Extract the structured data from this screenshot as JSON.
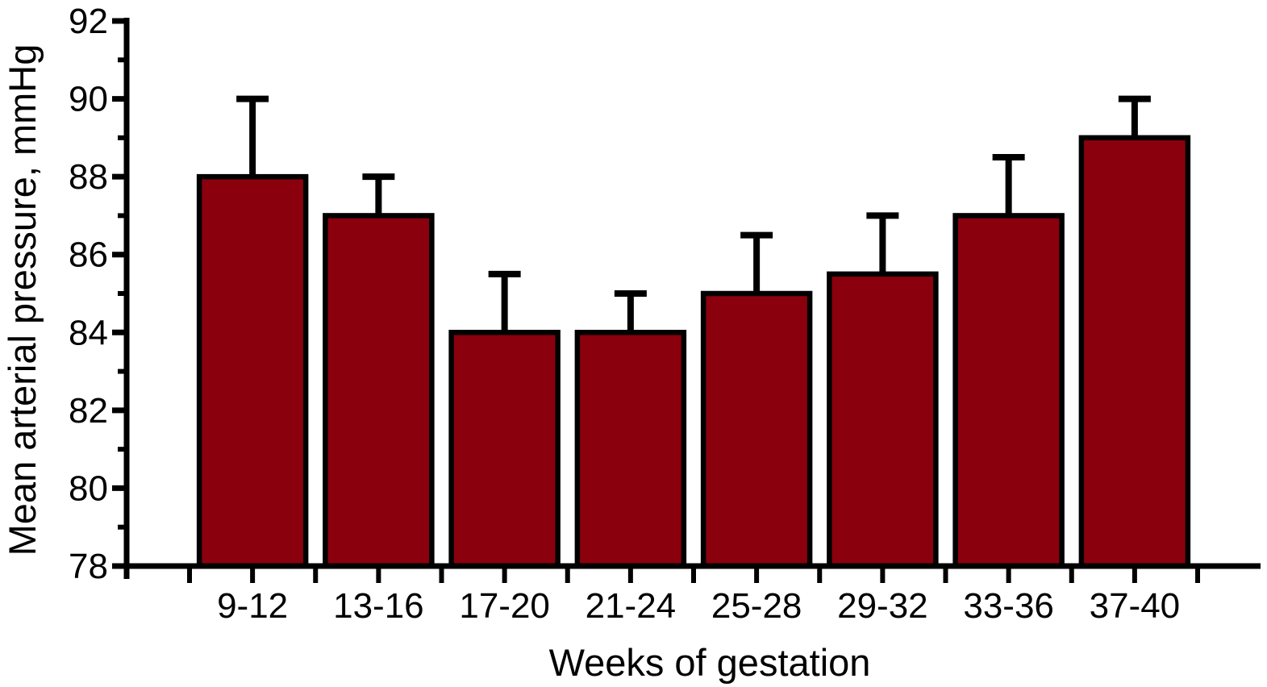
{
  "chart_data": {
    "type": "bar",
    "title": "",
    "xlabel": "Weeks of gestation",
    "ylabel": "Mean arterial pressure, mmHg",
    "categories": [
      "9-12",
      "13-16",
      "17-20",
      "21-24",
      "25-28",
      "29-32",
      "33-36",
      "37-40"
    ],
    "values": [
      88,
      87,
      84,
      84,
      85,
      85.5,
      87,
      89
    ],
    "error_up": [
      2,
      1,
      1.5,
      1,
      1.5,
      1.5,
      1.5,
      1
    ],
    "ylim": [
      78,
      92
    ],
    "y_major_ticks": [
      78,
      80,
      82,
      84,
      86,
      88,
      90,
      92
    ],
    "y_minor_tick_step": 1,
    "grid": false,
    "legend": "none",
    "bar_color": "#8B000D",
    "bar_border_color": "#000000",
    "axis_color": "#000000",
    "error_bar_color": "#000000"
  }
}
